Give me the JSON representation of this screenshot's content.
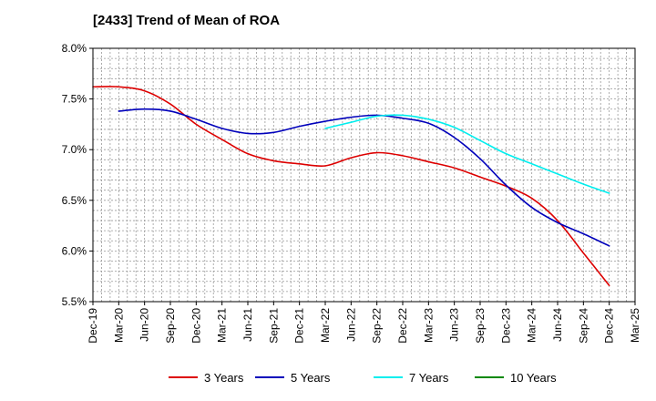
{
  "chart_data": {
    "type": "line",
    "title": "[2433]  Trend of Mean of ROA",
    "xlabel": "",
    "ylabel": "",
    "categories": [
      "Dec-19",
      "Mar-20",
      "Jun-20",
      "Sep-20",
      "Dec-20",
      "Mar-21",
      "Jun-21",
      "Sep-21",
      "Dec-21",
      "Mar-22",
      "Jun-22",
      "Sep-22",
      "Dec-22",
      "Mar-23",
      "Jun-23",
      "Sep-23",
      "Dec-23",
      "Mar-24",
      "Jun-24",
      "Sep-24",
      "Dec-24",
      "Mar-25"
    ],
    "y_ticks": [
      "5.5%",
      "6.0%",
      "6.5%",
      "7.0%",
      "7.5%",
      "8.0%"
    ],
    "ylim": [
      5.5,
      8.0
    ],
    "grid": true,
    "legend_position": "bottom",
    "series": [
      {
        "name": "3 Years",
        "color": "#dd0000",
        "values": [
          7.62,
          7.62,
          7.58,
          7.45,
          7.25,
          7.1,
          6.96,
          6.89,
          6.86,
          6.84,
          6.92,
          6.97,
          6.94,
          6.88,
          6.82,
          6.73,
          6.64,
          6.52,
          6.3,
          5.98,
          5.66,
          null
        ]
      },
      {
        "name": "5 Years",
        "color": "#0000bb",
        "values": [
          null,
          7.38,
          7.4,
          7.38,
          7.3,
          7.21,
          7.16,
          7.17,
          7.23,
          7.28,
          7.32,
          7.34,
          7.31,
          7.26,
          7.12,
          6.91,
          6.65,
          6.43,
          6.28,
          6.17,
          6.05,
          null
        ]
      },
      {
        "name": "7 Years",
        "color": "#00eeee",
        "values": [
          null,
          null,
          null,
          null,
          null,
          null,
          null,
          null,
          null,
          7.21,
          7.27,
          7.33,
          7.34,
          7.3,
          7.22,
          7.09,
          6.96,
          6.86,
          6.76,
          6.66,
          6.57,
          null
        ]
      },
      {
        "name": "10 Years",
        "color": "#008800",
        "values": [
          null,
          null,
          null,
          null,
          null,
          null,
          null,
          null,
          null,
          null,
          null,
          null,
          null,
          null,
          null,
          null,
          null,
          null,
          null,
          null,
          null,
          null
        ]
      }
    ]
  }
}
